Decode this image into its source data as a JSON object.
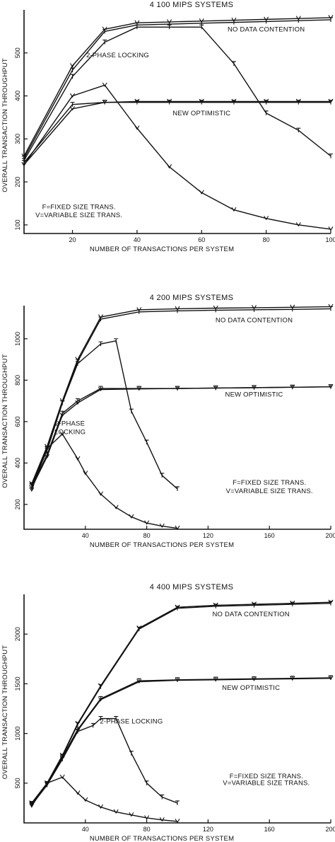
{
  "chart_data": [
    {
      "type": "line",
      "title": "4 100 MIPS SYSTEMS",
      "xlabel": "NUMBER OF TRANSACTIONS PER SYSTEM",
      "ylabel": "OVERALL TRANSACTION THROUGHPUT",
      "xlim": [
        5,
        100
      ],
      "ylim": [
        80,
        600
      ],
      "xticks": [
        20,
        40,
        60,
        80,
        100
      ],
      "yticks": [
        100,
        200,
        300,
        400,
        500
      ],
      "series": [
        {
          "name": "",
          "marker": "V",
          "x": [
            5,
            20,
            30,
            40,
            50,
            60,
            70,
            80,
            90,
            100
          ],
          "y": [
            260,
            470,
            555,
            570,
            572,
            574,
            576,
            578,
            580,
            582
          ]
        },
        {
          "name": "",
          "marker": "F",
          "x": [
            5,
            20,
            30,
            40,
            50,
            60,
            70,
            80,
            90,
            100
          ],
          "y": [
            255,
            460,
            550,
            565,
            567,
            569,
            571,
            573,
            575,
            577
          ]
        },
        {
          "name": "",
          "marker": "F",
          "x": [
            5,
            20,
            30,
            40,
            50,
            60,
            70,
            80,
            90,
            100
          ],
          "y": [
            250,
            445,
            525,
            560,
            560,
            560,
            475,
            360,
            320,
            260
          ]
        },
        {
          "name": "",
          "marker": "F",
          "x": [
            5,
            20,
            30,
            40,
            50,
            60,
            70,
            80,
            90,
            100
          ],
          "y": [
            245,
            380,
            385,
            385,
            385,
            385,
            385,
            385,
            385,
            385
          ]
        },
        {
          "name": "",
          "marker": "V",
          "x": [
            5,
            20,
            30,
            40,
            50,
            60,
            70,
            80,
            90,
            100
          ],
          "y": [
            240,
            370,
            385,
            387,
            387,
            387,
            387,
            387,
            387,
            387
          ]
        },
        {
          "name": "",
          "marker": "V",
          "x": [
            5,
            20,
            30,
            40,
            50,
            60,
            70,
            80,
            90,
            100
          ],
          "y": [
            240,
            400,
            425,
            325,
            235,
            175,
            135,
            115,
            100,
            90
          ]
        }
      ],
      "annotations": [
        {
          "text": "NO DATA CONTENTION",
          "x": 80,
          "y": 550
        },
        {
          "text": "2-PHASE LOCKING",
          "x": 34,
          "y": 490
        },
        {
          "text": "NEW OPTIMISTIC",
          "x": 60,
          "y": 355
        },
        {
          "text": "F=FIXED SIZE TRANS.",
          "x": 22,
          "y": 137
        },
        {
          "text": "V=VARIABLE SIZE TRANS.",
          "x": 22,
          "y": 118
        }
      ]
    },
    {
      "type": "line",
      "title": "4 200 MIPS SYSTEMS",
      "xlabel": "NUMBER OF TRANSACTIONS PER SYSTEM",
      "ylabel": "OVERALL TRANSACTION THROUGHPUT",
      "xlim": [
        0,
        200
      ],
      "ylim": [
        80,
        1160
      ],
      "xticks": [
        40,
        80,
        120,
        160,
        200
      ],
      "yticks": [
        200,
        400,
        600,
        800,
        1000
      ],
      "series": [
        {
          "name": "",
          "marker": "V",
          "x": [
            5,
            15,
            25,
            35,
            50,
            75,
            100,
            125,
            150,
            175,
            200
          ],
          "y": [
            300,
            480,
            700,
            900,
            1105,
            1140,
            1145,
            1148,
            1150,
            1152,
            1155
          ]
        },
        {
          "name": "",
          "marker": "F",
          "x": [
            5,
            15,
            25,
            35,
            50,
            75,
            100,
            125,
            150,
            175,
            200
          ],
          "y": [
            295,
            470,
            690,
            890,
            1095,
            1130,
            1135,
            1138,
            1140,
            1142,
            1145
          ]
        },
        {
          "name": "",
          "marker": "F",
          "x": [
            5,
            15,
            25,
            35,
            50,
            60,
            70,
            80,
            90,
            100
          ],
          "y": [
            290,
            460,
            690,
            880,
            975,
            990,
            650,
            500,
            340,
            275
          ]
        },
        {
          "name": "",
          "marker": "F",
          "x": [
            5,
            15,
            25,
            35,
            50,
            75,
            100,
            125,
            150,
            175,
            200
          ],
          "y": [
            285,
            440,
            640,
            700,
            760,
            760,
            760,
            762,
            764,
            766,
            768
          ]
        },
        {
          "name": "",
          "marker": "V",
          "x": [
            5,
            15,
            25,
            35,
            50,
            75,
            100,
            125,
            150,
            175,
            200
          ],
          "y": [
            280,
            430,
            630,
            690,
            755,
            758,
            760,
            762,
            764,
            766,
            768
          ]
        },
        {
          "name": "",
          "marker": "V",
          "x": [
            5,
            15,
            25,
            35,
            40,
            50,
            60,
            70,
            80,
            90,
            100
          ],
          "y": [
            270,
            470,
            540,
            420,
            350,
            250,
            185,
            140,
            110,
            95,
            85
          ]
        }
      ],
      "annotations": [
        {
          "text": "NO DATA CONTENTION",
          "x": 150,
          "y": 1080
        },
        {
          "text": "NEW OPTIMISTIC",
          "x": 150,
          "y": 720
        },
        {
          "text": "2-PHASE",
          "x": 30,
          "y": 580
        },
        {
          "text": "LOCKING",
          "x": 30,
          "y": 540
        },
        {
          "text": "F=FIXED SIZE TRANS.",
          "x": 160,
          "y": 295
        },
        {
          "text": "V=VARIABLE SIZE TRANS.",
          "x": 160,
          "y": 255
        }
      ]
    },
    {
      "type": "line",
      "title": "4 400 MIPS SYSTEMS",
      "xlabel": "NUMBER OF TRANSACTIONS PER SYSTEM",
      "ylabel": "OVERALL TRANSACTION THROUGHPUT",
      "xlim": [
        0,
        200
      ],
      "ylim": [
        100,
        2400
      ],
      "xticks": [
        40,
        80,
        120,
        160,
        200
      ],
      "yticks": [
        500,
        1000,
        1500,
        2000
      ],
      "series": [
        {
          "name": "",
          "marker": "V",
          "x": [
            5,
            15,
            25,
            35,
            50,
            75,
            100,
            125,
            150,
            175,
            200
          ],
          "y": [
            300,
            500,
            780,
            1100,
            1480,
            2060,
            2270,
            2290,
            2300,
            2310,
            2320
          ]
        },
        {
          "name": "",
          "marker": "F",
          "x": [
            5,
            15,
            25,
            35,
            50,
            75,
            100,
            125,
            150,
            175,
            200
          ],
          "y": [
            295,
            495,
            770,
            1090,
            1470,
            2050,
            2260,
            2280,
            2290,
            2300,
            2310
          ]
        },
        {
          "name": "",
          "marker": "F",
          "x": [
            5,
            15,
            25,
            35,
            50,
            75,
            100,
            125,
            150,
            175,
            200
          ],
          "y": [
            290,
            490,
            760,
            1040,
            1350,
            1530,
            1540,
            1545,
            1550,
            1555,
            1560
          ]
        },
        {
          "name": "",
          "marker": "V",
          "x": [
            5,
            15,
            25,
            35,
            50,
            75,
            100,
            125,
            150,
            175,
            200
          ],
          "y": [
            285,
            485,
            750,
            1030,
            1340,
            1520,
            1535,
            1540,
            1545,
            1550,
            1555
          ]
        },
        {
          "name": "",
          "marker": "F",
          "x": [
            5,
            15,
            25,
            35,
            45,
            50,
            60,
            70,
            80,
            90,
            100
          ],
          "y": [
            280,
            480,
            740,
            1020,
            1080,
            1150,
            1150,
            800,
            500,
            360,
            300
          ]
        },
        {
          "name": "",
          "marker": "V",
          "x": [
            5,
            15,
            25,
            35,
            40,
            50,
            60,
            70,
            80,
            90,
            100
          ],
          "y": [
            270,
            500,
            560,
            400,
            330,
            260,
            210,
            180,
            150,
            130,
            115
          ]
        }
      ],
      "annotations": [
        {
          "text": "NO DATA CONTENTION",
          "x": 148,
          "y": 2180
        },
        {
          "text": "NEW OPTIMISTIC",
          "x": 148,
          "y": 1440
        },
        {
          "text": "2-PHASE LOCKING",
          "x": 70,
          "y": 1100
        },
        {
          "text": "F=FIXED SIZE TRANS.",
          "x": 158,
          "y": 550
        },
        {
          "text": "V=VARIABLE SIZE TRANS.",
          "x": 158,
          "y": 480
        }
      ]
    }
  ]
}
